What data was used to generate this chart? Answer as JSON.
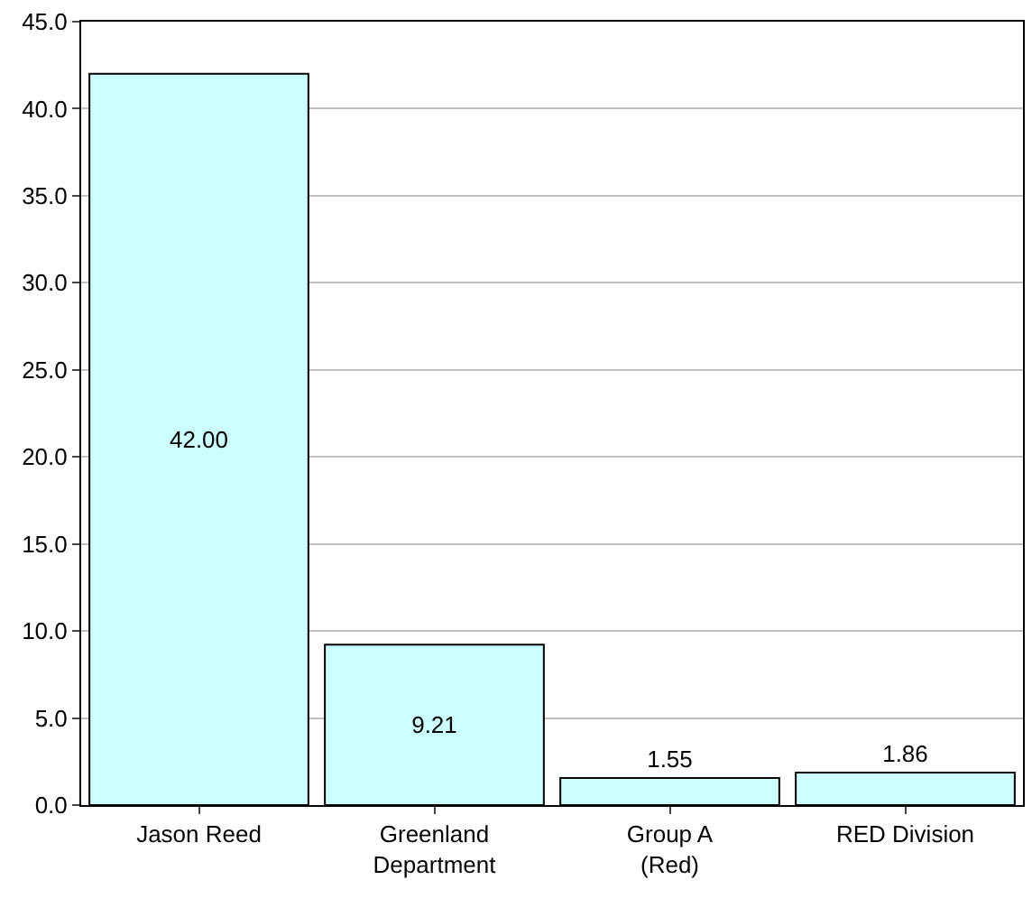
{
  "chart_data": {
    "type": "bar",
    "categories": [
      "Jason Reed",
      "Greenland\nDepartment",
      "Group A\n(Red)",
      "RED Division"
    ],
    "values": [
      42.0,
      9.21,
      1.55,
      1.86
    ],
    "value_labels": [
      "42.00",
      "9.21",
      "1.55",
      "1.86"
    ],
    "color": "#ccffff",
    "ylim": [
      0,
      45
    ],
    "yticks": [
      {
        "value": 0,
        "label": "0.0"
      },
      {
        "value": 5,
        "label": "5.0"
      },
      {
        "value": 10,
        "label": "10.0"
      },
      {
        "value": 15,
        "label": "15.0"
      },
      {
        "value": 20,
        "label": "20.0"
      },
      {
        "value": 25,
        "label": "25.0"
      },
      {
        "value": 30,
        "label": "30.0"
      },
      {
        "value": 35,
        "label": "35.0"
      },
      {
        "value": 40,
        "label": "40.0"
      },
      {
        "value": 45,
        "label": "45.0"
      }
    ],
    "grid": "y"
  }
}
